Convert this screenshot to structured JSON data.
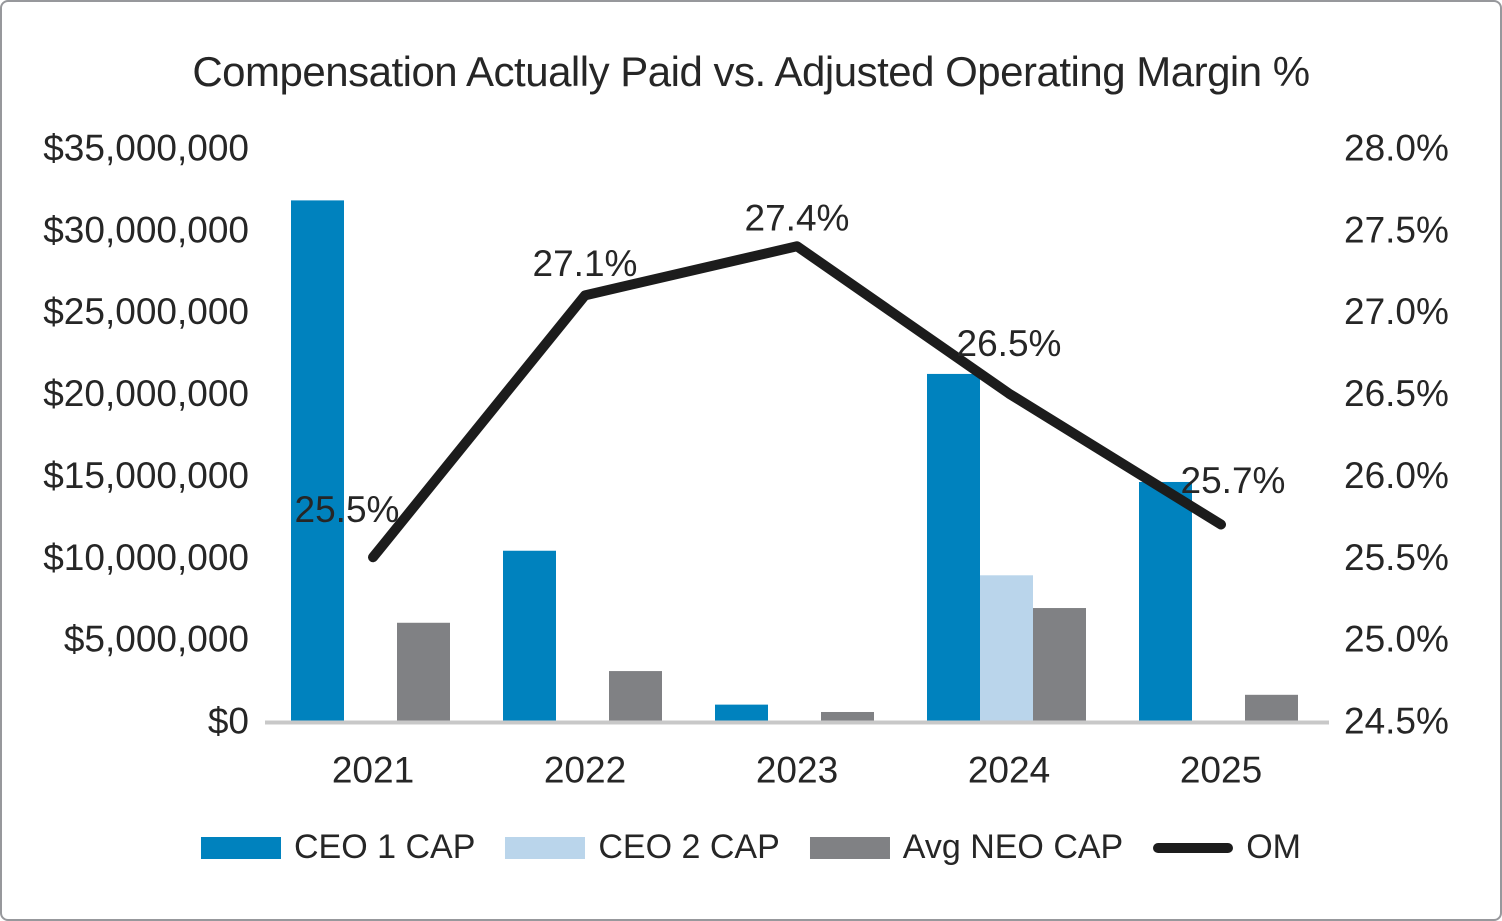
{
  "chart_data": {
    "type": "bar+line",
    "title": "Compensation Actually Paid vs. Adjusted Operating Margin %",
    "categories": [
      "2021",
      "2022",
      "2023",
      "2024",
      "2025"
    ],
    "bar_series": [
      {
        "name": "CEO 1 CAP",
        "color": "#0082be",
        "values": [
          31800000,
          10400000,
          1000000,
          21200000,
          14600000
        ]
      },
      {
        "name": "CEO 2 CAP",
        "color": "#bad5eb",
        "values": [
          0,
          0,
          0,
          8900000,
          0
        ]
      },
      {
        "name": "Avg NEO CAP",
        "color": "#808184",
        "values": [
          6000000,
          3050000,
          550000,
          6900000,
          1600000
        ]
      }
    ],
    "line_series": {
      "name": "OM",
      "color": "#1c1c1c",
      "values": [
        25.5,
        27.1,
        27.4,
        26.5,
        25.7
      ],
      "data_labels": [
        "25.5%",
        "27.1%",
        "27.4%",
        "26.5%",
        "25.7%"
      ]
    },
    "left_axis": {
      "min": 0,
      "max": 35000000,
      "ticks": [
        "$35,000,000",
        "$30,000,000",
        "$25,000,000",
        "$20,000,000",
        "$15,000,000",
        "$10,000,000",
        "$5,000,000",
        "$0"
      ]
    },
    "right_axis": {
      "min": 24.5,
      "max": 28.0,
      "ticks": [
        "28.0%",
        "27.5%",
        "27.0%",
        "26.5%",
        "26.0%",
        "25.5%",
        "25.0%",
        "24.5%"
      ]
    },
    "legend": [
      {
        "label": "CEO 1 CAP",
        "swatch": "bar",
        "color": "#0082be"
      },
      {
        "label": "CEO 2 CAP",
        "swatch": "bar",
        "color": "#bad5eb"
      },
      {
        "label": "Avg NEO CAP",
        "swatch": "bar",
        "color": "#808184"
      },
      {
        "label": "OM",
        "swatch": "line",
        "color": "#1c1c1c"
      }
    ],
    "grid": "off",
    "legend_position": "bottom",
    "axis_line_color": "#c8c8c8",
    "text_color": "#262626"
  }
}
